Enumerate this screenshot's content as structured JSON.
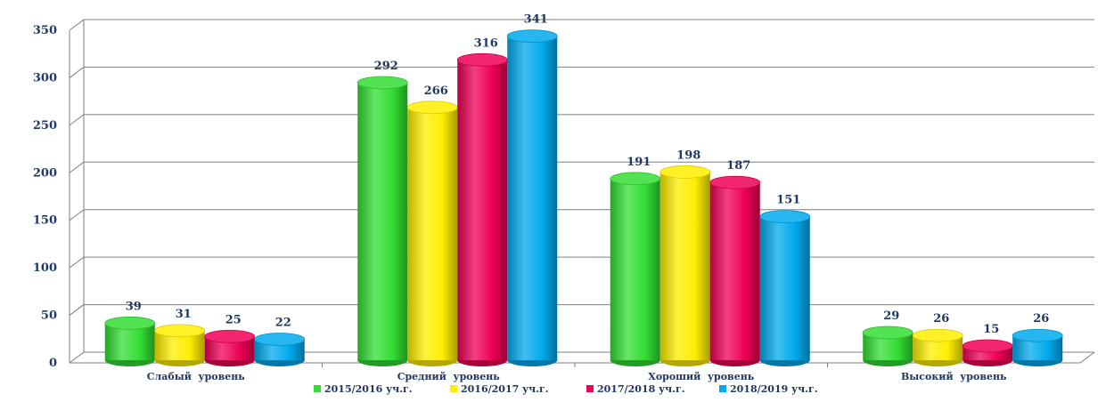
{
  "chart_data": {
    "type": "bar",
    "categories": [
      "Слабый  уровень",
      "Средний  уровень",
      "Хороший  уровень",
      "Высокий  уровень"
    ],
    "series": [
      {
        "name": "2015/2016 уч.г.",
        "color": "#33dd33",
        "values": [
          39,
          292,
          191,
          29
        ]
      },
      {
        "name": "2016/2017 уч.г.",
        "color": "#ffee00",
        "values": [
          31,
          266,
          198,
          26
        ]
      },
      {
        "name": "2017/2018 уч.г.",
        "color": "#ee0055",
        "values": [
          25,
          316,
          187,
          15
        ]
      },
      {
        "name": "2018/2019 уч.г.",
        "color": "#00aaee",
        "values": [
          22,
          341,
          151,
          26
        ]
      }
    ],
    "ylim": [
      0,
      350
    ],
    "yticks": [
      0,
      50,
      100,
      150,
      200,
      250,
      300,
      350
    ],
    "grid": true,
    "legend_position": "bottom",
    "style": "3d-cylinder"
  }
}
